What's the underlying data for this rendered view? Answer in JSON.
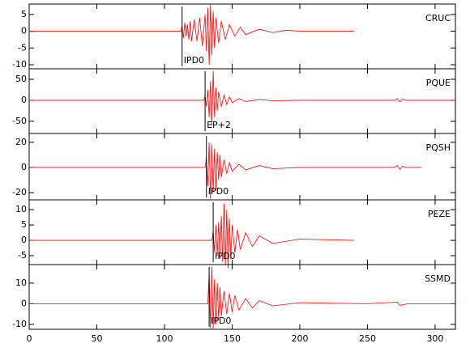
{
  "chart_data": [
    {
      "type": "line",
      "station": "CRUC",
      "phase_label": "IPD0",
      "pick": 113,
      "color": "#ff0000",
      "x": [
        0,
        112,
        113,
        114,
        115,
        116,
        117,
        118,
        119,
        120,
        122,
        124,
        126,
        128,
        130,
        131,
        132,
        133,
        134,
        135,
        136,
        137,
        138,
        140,
        142,
        145,
        148,
        152,
        156,
        160,
        170,
        180,
        190,
        200,
        240
      ],
      "values": [
        0,
        0,
        1.5,
        -2,
        2.5,
        -1.5,
        2,
        -2.5,
        3,
        -3,
        3.5,
        -3,
        4,
        -4.5,
        5,
        -6,
        7,
        -10,
        8,
        -7,
        6,
        -5,
        4,
        -3.5,
        3,
        -2.5,
        2,
        -1.5,
        1.2,
        -1,
        0.6,
        -0.4,
        0.3,
        0,
        0
      ],
      "xlim": [
        0,
        315
      ],
      "ylim": [
        -11.2,
        8.1
      ],
      "xticks": [
        0,
        50,
        100,
        150,
        200,
        250,
        300
      ],
      "yticks": [
        -10,
        -5,
        0,
        5
      ]
    },
    {
      "type": "line",
      "station": "PQUE",
      "phase_label": "EP+2",
      "pick": 130,
      "color": "#ff0000",
      "x": [
        0,
        129,
        130,
        131,
        132,
        133,
        134,
        135,
        136,
        137,
        138,
        139,
        140,
        142,
        144,
        146,
        148,
        150,
        155,
        160,
        170,
        180,
        200,
        250,
        270,
        272,
        274,
        276,
        278,
        315
      ],
      "values": [
        0,
        0,
        10,
        -15,
        25,
        -40,
        45,
        -60,
        70,
        -40,
        30,
        -25,
        20,
        -15,
        12,
        -10,
        8,
        -6,
        4,
        -3,
        2,
        -1,
        0,
        0,
        0,
        4,
        -4,
        3,
        0,
        0
      ],
      "xlim": [
        0,
        315
      ],
      "ylim": [
        -79,
        75
      ],
      "xticks": [
        0,
        50,
        100,
        150,
        200,
        250,
        300
      ],
      "yticks": [
        -50,
        0,
        50
      ]
    },
    {
      "type": "line",
      "station": "PQSH",
      "phase_label": "IPD0",
      "pick": 131,
      "color": "#ff0000",
      "x": [
        0,
        130,
        131,
        132,
        133,
        134,
        135,
        136,
        137,
        138,
        139,
        140,
        141,
        142,
        144,
        146,
        148,
        150,
        155,
        160,
        170,
        180,
        200,
        270,
        272,
        274,
        276,
        278,
        290
      ],
      "values": [
        0,
        0,
        8,
        -15,
        20,
        -25,
        18,
        -20,
        15,
        -18,
        12,
        -10,
        10,
        -8,
        6,
        -5,
        4,
        -3,
        2.5,
        -2,
        1.5,
        -1,
        0,
        0,
        1.5,
        -1.5,
        1,
        0,
        0
      ],
      "xlim": [
        0,
        315
      ],
      "ylim": [
        -25.8,
        27
      ],
      "xticks": [
        0,
        50,
        100,
        150,
        200,
        250,
        300
      ],
      "yticks": [
        -20,
        0,
        20
      ]
    },
    {
      "type": "line",
      "station": "PEZE",
      "phase_label": "IPD0",
      "pick": 136,
      "color": "#ff0000",
      "x": [
        0,
        135,
        136,
        137,
        138,
        139,
        140,
        141,
        142,
        143,
        144,
        145,
        146,
        147,
        148,
        149,
        150,
        152,
        154,
        156,
        160,
        165,
        170,
        180,
        200,
        240
      ],
      "values": [
        0,
        0,
        3,
        -4,
        5,
        -5,
        6,
        -6,
        8,
        -7,
        12,
        -8,
        10,
        -9,
        7,
        -6,
        5,
        -4,
        3.5,
        -3,
        2.5,
        -2,
        1.5,
        -1,
        0.4,
        0
      ],
      "xlim": [
        0,
        315
      ],
      "ylim": [
        -7.9,
        13.2
      ],
      "xticks": [
        0,
        50,
        100,
        150,
        200,
        250,
        300
      ],
      "yticks": [
        -5,
        0,
        5,
        10
      ]
    },
    {
      "type": "line",
      "station": "SSMD",
      "phase_label": "IPD0",
      "pick": 133,
      "color": "#ff0000",
      "x": [
        0,
        132,
        133,
        134,
        135,
        136,
        137,
        138,
        139,
        140,
        141,
        142,
        144,
        146,
        148,
        150,
        152,
        155,
        160,
        165,
        170,
        180,
        200,
        250,
        272,
        274,
        280,
        315
      ],
      "values": [
        0,
        0,
        15,
        -12,
        18,
        -12,
        12,
        -10,
        10,
        -8,
        8,
        -6,
        6,
        -5,
        5,
        -4,
        4,
        -3,
        2.5,
        -2,
        1.5,
        -1,
        0.5,
        0,
        0.8,
        -0.8,
        0,
        0
      ],
      "xlim": [
        0,
        315
      ],
      "ylim": [
        -12.4,
        19
      ],
      "xticks": [
        0,
        50,
        100,
        150,
        200,
        250,
        300
      ],
      "yticks": [
        -10,
        0,
        10
      ]
    }
  ]
}
